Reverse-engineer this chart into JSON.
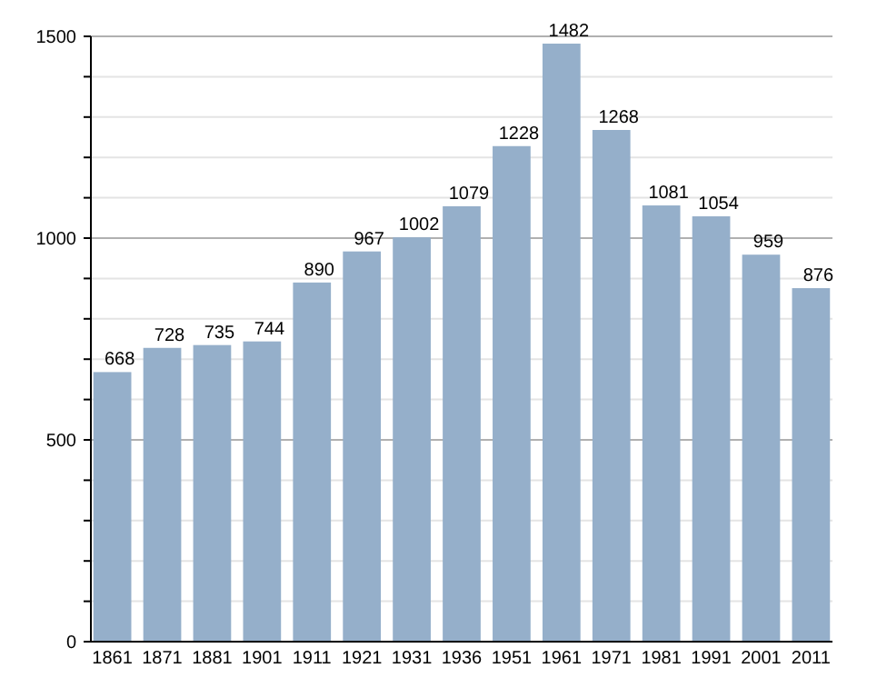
{
  "chart_data": {
    "type": "bar",
    "categories": [
      "1861",
      "1871",
      "1881",
      "1901",
      "1911",
      "1921",
      "1931",
      "1936",
      "1951",
      "1961",
      "1971",
      "1981",
      "1991",
      "2001",
      "2011"
    ],
    "values": [
      668,
      728,
      735,
      744,
      890,
      967,
      1002,
      1079,
      1228,
      1482,
      1268,
      1081,
      1054,
      959,
      876
    ],
    "color": "#95afca",
    "ylim": [
      0,
      1500
    ],
    "yticks": [
      0,
      {
        "value": 100,
        "label": null
      },
      {
        "value": 200,
        "label": null
      },
      {
        "value": 300,
        "label": null
      },
      {
        "value": 400,
        "label": null
      },
      500,
      {
        "value": 600,
        "label": null
      },
      {
        "value": 700,
        "label": null
      },
      {
        "value": 800,
        "label": null
      },
      {
        "value": 900,
        "label": null
      },
      1000,
      {
        "value": 1100,
        "label": null
      },
      {
        "value": 1200,
        "label": null
      },
      {
        "value": 1300,
        "label": null
      },
      {
        "value": 1400,
        "label": null
      },
      1500
    ],
    "grid": true,
    "data_labels": true
  }
}
